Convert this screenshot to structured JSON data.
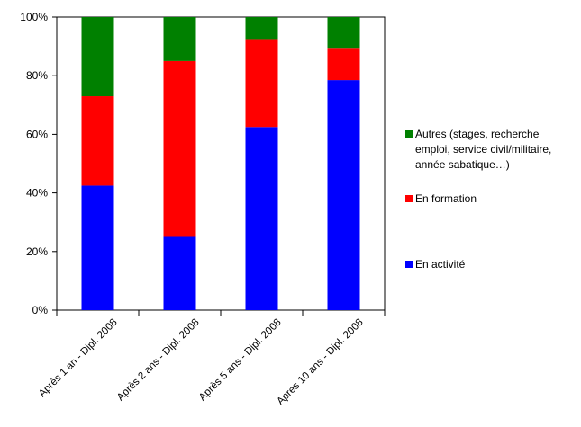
{
  "chart_data": {
    "type": "bar",
    "stacked": true,
    "percent": true,
    "categories": [
      "Après 1 an - Dipl. 2008",
      "Après 2 ans - Dipl. 2008",
      "Après 5 ans - Dipl. 2008",
      "Après 10 ans - Dipl. 2008"
    ],
    "series": [
      {
        "name": "En activité",
        "color": "#0000ff",
        "values": [
          42.5,
          25,
          62.5,
          78.5
        ]
      },
      {
        "name": "En formation",
        "color": "#ff0000",
        "values": [
          30.5,
          60,
          30,
          11
        ]
      },
      {
        "name": "Autres (stages, recherche emploi, service civil/militaire, année sabatique…)",
        "legend_lines": [
          "Autres (stages, recherche",
          "emploi, service civil/militaire,",
          "année sabatique…)"
        ],
        "color": "#008000",
        "values": [
          27,
          15,
          7.5,
          10.5
        ]
      }
    ],
    "ylim": [
      0,
      100
    ],
    "yticks": [
      "0%",
      "20%",
      "40%",
      "60%",
      "80%",
      "100%"
    ],
    "grid": false,
    "legend": "right",
    "legend_order": [
      "Autres (stages, recherche emploi, service civil/militaire, année sabatique…)",
      "En formation",
      "En activité"
    ]
  }
}
